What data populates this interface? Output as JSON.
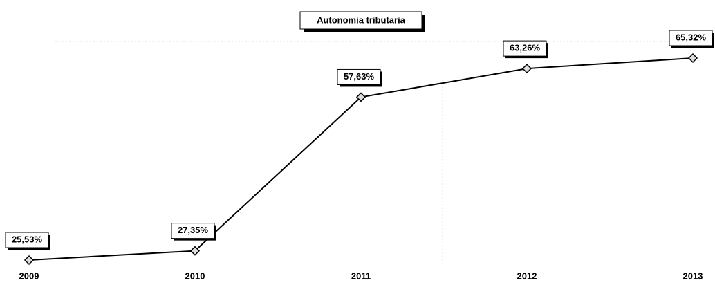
{
  "chart_data": {
    "type": "line",
    "title": "Autonomia tributaria",
    "categories": [
      "2009",
      "2010",
      "2011",
      "2012",
      "2013"
    ],
    "series": [
      {
        "name": "Autonomia tributaria",
        "color": "#000000",
        "values": [
          25.53,
          27.35,
          57.63,
          63.26,
          65.32
        ],
        "value_labels": [
          "25,53%",
          "27,35%",
          "57,63%",
          "63,26%",
          "65,32%"
        ]
      }
    ]
  }
}
